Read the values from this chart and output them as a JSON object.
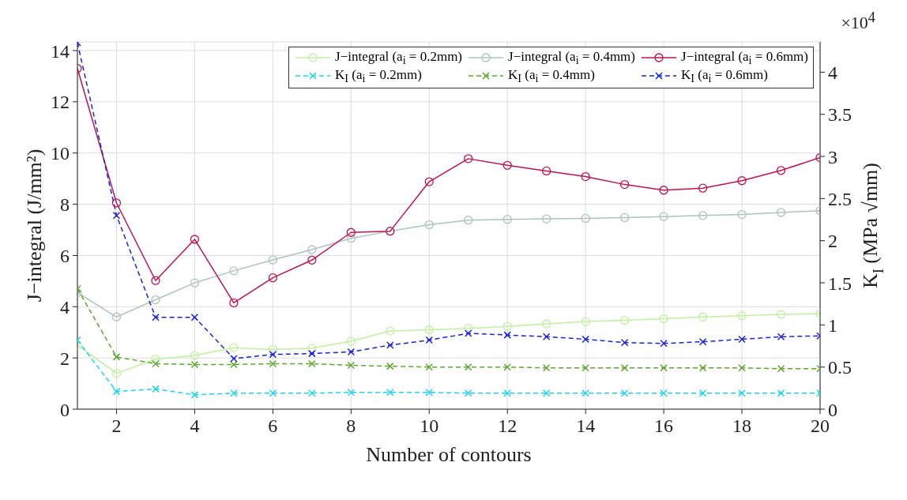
{
  "chart_data": {
    "type": "line",
    "xlabel": "Number of contours",
    "ylabel": "J−integral (J/mm²)",
    "y2label": "K$_{I}$ (MPa √mm)",
    "annotations": [
      "×10$^{4}$"
    ],
    "x": [
      1,
      2,
      3,
      4,
      5,
      6,
      7,
      8,
      9,
      10,
      11,
      12,
      13,
      14,
      15,
      16,
      17,
      18,
      19,
      20
    ],
    "series": [
      {
        "name": "J−integral (a$_{i}$ = 0.2mm)",
        "color": "#c2f0a0",
        "marker": "circle",
        "line_style": "solid",
        "values": [
          2.5,
          1.4,
          1.95,
          2.1,
          2.4,
          2.33,
          2.38,
          2.65,
          3.05,
          3.1,
          3.15,
          3.23,
          3.33,
          3.42,
          3.47,
          3.53,
          3.6,
          3.65,
          3.7,
          3.73
        ]
      },
      {
        "name": "J−integral (a$_{i}$ = 0.4mm)",
        "color": "#adc4bc",
        "marker": "circle",
        "line_style": "solid",
        "values": [
          4.55,
          3.6,
          4.27,
          4.93,
          5.4,
          5.83,
          6.23,
          6.67,
          6.95,
          7.2,
          7.38,
          7.41,
          7.43,
          7.45,
          7.48,
          7.52,
          7.56,
          7.6,
          7.68,
          7.75
        ]
      },
      {
        "name": "J−integral (a$_{i}$ = 0.6mm)",
        "color": "#c2124d",
        "marker": "circle",
        "line_style": "solid",
        "values": [
          13.3,
          8.05,
          5.02,
          6.63,
          4.15,
          5.13,
          5.82,
          6.9,
          6.95,
          8.88,
          9.78,
          9.52,
          9.3,
          9.08,
          8.77,
          8.55,
          8.63,
          8.92,
          9.32,
          9.82
        ]
      },
      {
        "name": "K$_{I}$ (a$_{i}$ = 0.2mm)",
        "axis": "y2",
        "color": "#1ad7ee",
        "marker": "cross",
        "line_style": "dashed",
        "values": [
          0.82,
          0.21,
          0.24,
          0.17,
          0.19,
          0.19,
          0.19,
          0.2,
          0.2,
          0.2,
          0.19,
          0.19,
          0.19,
          0.19,
          0.19,
          0.19,
          0.19,
          0.19,
          0.19,
          0.19
        ]
      },
      {
        "name": "K$_{I}$ (a$_{i}$ = 0.4mm)",
        "axis": "y2",
        "color": "#5fa630",
        "marker": "cross",
        "line_style": "dashed",
        "values": [
          1.43,
          0.62,
          0.54,
          0.53,
          0.53,
          0.54,
          0.54,
          0.52,
          0.51,
          0.5,
          0.5,
          0.5,
          0.49,
          0.49,
          0.49,
          0.49,
          0.49,
          0.49,
          0.48,
          0.48
        ]
      },
      {
        "name": "K$_{I}$ (a$_{i}$ = 0.6mm)",
        "axis": "y2",
        "color": "#1a22e0",
        "marker": "cross",
        "line_style": "dashed",
        "values": [
          4.35,
          2.3,
          1.09,
          1.09,
          0.6,
          0.65,
          0.66,
          0.68,
          0.76,
          0.82,
          0.9,
          0.88,
          0.86,
          0.83,
          0.79,
          0.78,
          0.8,
          0.83,
          0.86,
          0.87
        ]
      }
    ],
    "xlim": [
      1,
      20
    ],
    "xticks": [
      2,
      4,
      6,
      8,
      10,
      12,
      14,
      16,
      18,
      20
    ],
    "ylim": [
      0,
      14.34
    ],
    "yticks": [
      0,
      2,
      4,
      6,
      8,
      10,
      12,
      14
    ],
    "y2lim": [
      0,
      4.36
    ],
    "y2ticks": [
      0,
      0.5,
      1,
      1.5,
      2,
      2.5,
      3,
      3.5,
      4
    ],
    "grid": true,
    "legend": "top right"
  }
}
